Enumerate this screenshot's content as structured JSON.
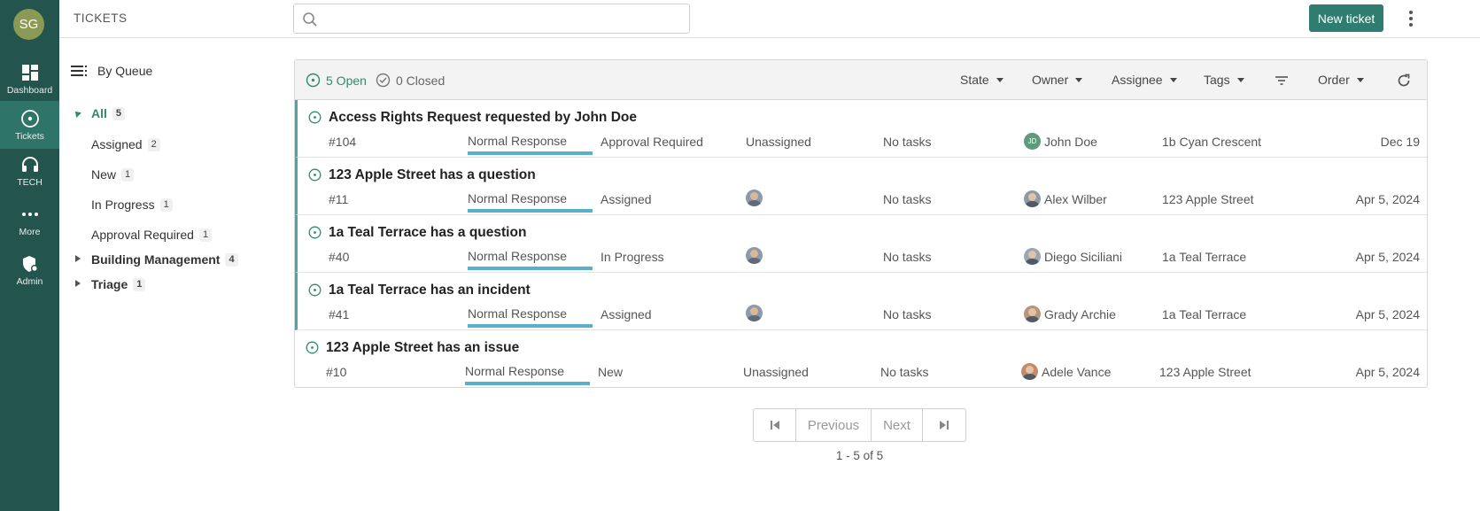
{
  "app": {
    "user_initials": "SG",
    "header_title": "TICKETS",
    "search_placeholder": "",
    "new_ticket_label": "New ticket",
    "brand_color": "#23554e",
    "accent_color": "#2f7d70"
  },
  "rail": {
    "items": [
      {
        "label": "Dashboard",
        "icon": "dashboard-icon"
      },
      {
        "label": "Tickets",
        "icon": "ticket-circle-icon",
        "active": true
      },
      {
        "label": "TECH",
        "icon": "headset-icon"
      },
      {
        "label": "More",
        "icon": "more-dots-icon"
      },
      {
        "label": "Admin",
        "icon": "admin-shield-icon"
      }
    ]
  },
  "queues": {
    "heading": "By Queue",
    "all": {
      "label": "All",
      "count": "5"
    },
    "children": [
      {
        "label": "Assigned",
        "count": "2"
      },
      {
        "label": "New",
        "count": "1"
      },
      {
        "label": "In Progress",
        "count": "1"
      },
      {
        "label": "Approval Required",
        "count": "1"
      }
    ],
    "groups": [
      {
        "label": "Building Management",
        "count": "4"
      },
      {
        "label": "Triage",
        "count": "1"
      }
    ]
  },
  "toolbar": {
    "open_label": "5 Open",
    "closed_label": "0 Closed",
    "filters": [
      "State",
      "Owner",
      "Assignee",
      "Tags"
    ],
    "order_label": "Order"
  },
  "tickets": [
    {
      "title": "Access Rights Request requested by John Doe",
      "id": "#104",
      "priority": "Normal Response",
      "state": "Approval Required",
      "assignee": "Unassigned",
      "tasks": "No tasks",
      "owner_initials": "JD",
      "owner": "John Doe",
      "location": "1b Cyan Crescent",
      "date": "Dec 19"
    },
    {
      "title": "123 Apple Street has a question",
      "id": "#11",
      "priority": "Normal Response",
      "state": "Assigned",
      "assignee": "",
      "tasks": "No tasks",
      "owner_initials": "",
      "owner": "Alex Wilber",
      "location": "123 Apple Street",
      "date": "Apr 5, 2024"
    },
    {
      "title": "1a Teal Terrace has a question",
      "id": "#40",
      "priority": "Normal Response",
      "state": "In Progress",
      "assignee": "",
      "tasks": "No tasks",
      "owner_initials": "",
      "owner": "Diego Siciliani",
      "location": "1a Teal Terrace",
      "date": "Apr 5, 2024"
    },
    {
      "title": "1a Teal Terrace has an incident",
      "id": "#41",
      "priority": "Normal Response",
      "state": "Assigned",
      "assignee": "",
      "tasks": "No tasks",
      "owner_initials": "",
      "owner": "Grady Archie",
      "location": "1a Teal Terrace",
      "date": "Apr 5, 2024"
    },
    {
      "title": "123 Apple Street has an issue",
      "id": "#10",
      "priority": "Normal Response",
      "state": "New",
      "assignee": "Unassigned",
      "tasks": "No tasks",
      "owner_initials": "",
      "owner": "Adele Vance",
      "location": "123 Apple Street",
      "date": "Apr 5, 2024"
    }
  ],
  "pagination": {
    "previous_label": "Previous",
    "next_label": "Next",
    "summary": "1 - 5 of 5"
  }
}
